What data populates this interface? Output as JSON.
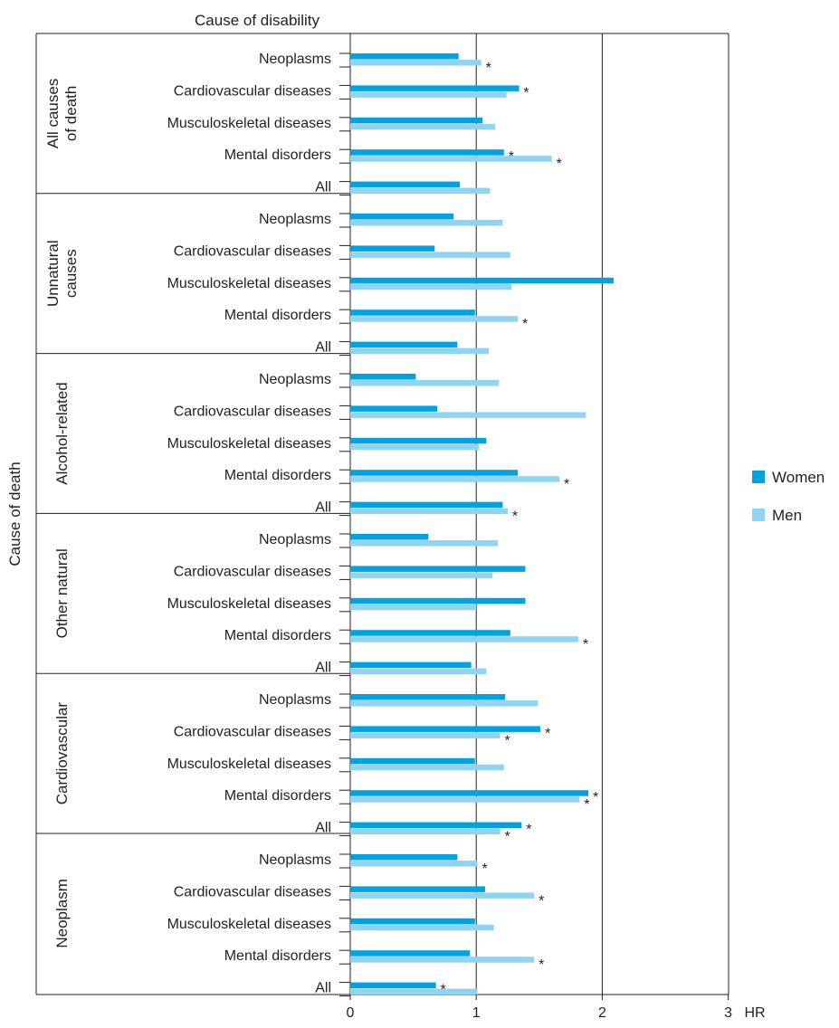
{
  "chart_data": {
    "type": "bar",
    "orientation": "horizontal",
    "title": "Cause of disability",
    "ylabel": "Cause of death",
    "xlabel": "HR",
    "xlim": [
      0,
      3
    ],
    "xticks": [
      "0",
      "1",
      "2",
      "3"
    ],
    "reference_lines": [
      1,
      2
    ],
    "legend": {
      "position": "right",
      "entries": [
        "Women",
        "Men"
      ]
    },
    "colors": {
      "Women": "#00a3e0",
      "Men": "#8fd4f2",
      "axis": "#231f20"
    },
    "groups": [
      {
        "name": "All causes of death",
        "label_lines": [
          "All causes",
          "of death"
        ],
        "rows": [
          {
            "label": "Neoplasms",
            "women": 0.86,
            "men": 1.04,
            "women_sig": false,
            "men_sig": true
          },
          {
            "label": "Cardiovascular diseases",
            "women": 1.34,
            "men": 1.24,
            "women_sig": true,
            "men_sig": false
          },
          {
            "label": "Musculoskeletal diseases",
            "women": 1.05,
            "men": 1.15,
            "women_sig": false,
            "men_sig": false
          },
          {
            "label": "Mental disorders",
            "women": 1.22,
            "men": 1.6,
            "women_sig": true,
            "men_sig": true
          },
          {
            "label": "All",
            "women": 0.87,
            "men": 1.11,
            "women_sig": false,
            "men_sig": false
          }
        ]
      },
      {
        "name": "Unnatural causes",
        "label_lines": [
          "Unnatural",
          "causes"
        ],
        "rows": [
          {
            "label": "Neoplasms",
            "women": 0.82,
            "men": 1.21,
            "women_sig": false,
            "men_sig": false
          },
          {
            "label": "Cardiovascular diseases",
            "women": 0.67,
            "men": 1.27,
            "women_sig": false,
            "men_sig": false
          },
          {
            "label": "Musculoskeletal diseases",
            "women": 2.09,
            "men": 1.28,
            "women_sig": false,
            "men_sig": false
          },
          {
            "label": "Mental disorders",
            "women": 0.99,
            "men": 1.33,
            "women_sig": false,
            "men_sig": true
          },
          {
            "label": "All",
            "women": 0.85,
            "men": 1.1,
            "women_sig": false,
            "men_sig": false
          }
        ]
      },
      {
        "name": "Alcohol-related",
        "label_lines": [
          "Alcohol-related"
        ],
        "rows": [
          {
            "label": "Neoplasms",
            "women": 0.52,
            "men": 1.18,
            "women_sig": false,
            "men_sig": false
          },
          {
            "label": "Cardiovascular diseases",
            "women": 0.69,
            "men": 1.87,
            "women_sig": false,
            "men_sig": false
          },
          {
            "label": "Musculoskeletal diseases",
            "women": 1.08,
            "men": 1.02,
            "women_sig": false,
            "men_sig": false
          },
          {
            "label": "Mental disorders",
            "women": 1.33,
            "men": 1.66,
            "women_sig": false,
            "men_sig": true
          },
          {
            "label": "All",
            "women": 1.21,
            "men": 1.25,
            "women_sig": false,
            "men_sig": true
          }
        ]
      },
      {
        "name": "Other natural",
        "label_lines": [
          "Other natural"
        ],
        "rows": [
          {
            "label": "Neoplasms",
            "women": 0.62,
            "men": 1.17,
            "women_sig": false,
            "men_sig": false
          },
          {
            "label": "Cardiovascular diseases",
            "women": 1.39,
            "men": 1.13,
            "women_sig": false,
            "men_sig": false
          },
          {
            "label": "Musculoskeletal diseases",
            "women": 1.39,
            "men": 1.0,
            "women_sig": false,
            "men_sig": false
          },
          {
            "label": "Mental disorders",
            "women": 1.27,
            "men": 1.81,
            "women_sig": false,
            "men_sig": true
          },
          {
            "label": "All",
            "women": 0.96,
            "men": 1.08,
            "women_sig": false,
            "men_sig": false
          }
        ]
      },
      {
        "name": "Cardiovascular",
        "label_lines": [
          "Cardiovascular"
        ],
        "rows": [
          {
            "label": "Neoplasms",
            "women": 1.23,
            "men": 1.49,
            "women_sig": false,
            "men_sig": false
          },
          {
            "label": "Cardiovascular diseases",
            "women": 1.51,
            "men": 1.19,
            "women_sig": true,
            "men_sig": true
          },
          {
            "label": "Musculoskeletal diseases",
            "women": 0.99,
            "men": 1.22,
            "women_sig": false,
            "men_sig": false
          },
          {
            "label": "Mental disorders",
            "women": 1.89,
            "men": 1.82,
            "women_sig": true,
            "men_sig": true
          },
          {
            "label": "All",
            "women": 1.36,
            "men": 1.19,
            "women_sig": true,
            "men_sig": true
          }
        ]
      },
      {
        "name": "Neoplasm",
        "label_lines": [
          "Neoplasm"
        ],
        "rows": [
          {
            "label": "Neoplasms",
            "women": 0.85,
            "men": 1.01,
            "women_sig": false,
            "men_sig": true
          },
          {
            "label": "Cardiovascular diseases",
            "women": 1.07,
            "men": 1.46,
            "women_sig": false,
            "men_sig": true
          },
          {
            "label": "Musculoskeletal diseases",
            "women": 0.99,
            "men": 1.14,
            "women_sig": false,
            "men_sig": false
          },
          {
            "label": "Mental disorders",
            "women": 0.95,
            "men": 1.46,
            "women_sig": false,
            "men_sig": true
          },
          {
            "label": "All",
            "women": 0.68,
            "men": 1.01,
            "women_sig": true,
            "men_sig": false
          }
        ]
      }
    ],
    "significance_marker": "*"
  }
}
